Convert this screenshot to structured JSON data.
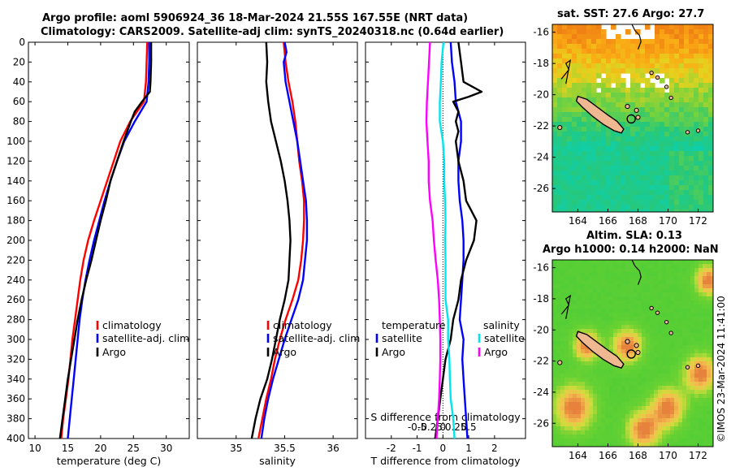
{
  "titles": {
    "line1": "Argo profile: aoml 5906924_36 18-Mar-2024 21.55S 167.55E (NRT data)",
    "line2": "Climatology: CARS2009. Satellite-adj clim: synTS_20240318.nc (0.64d earlier)",
    "sst_map": "sat. SST: 27.6 Argo: 27.7",
    "sla_map_1": "Altim. SLA: 0.13",
    "sla_map_2": "Argo h1000: 0.14 h2000: NaN"
  },
  "credit": "©IMOS 23-Mar-2024 11:41:00",
  "colors": {
    "climatology": "#ff0000",
    "satellite": "#0000ff",
    "argo": "#000000",
    "sal_sat": "#00e5ee",
    "sal_argo": "#ff00ff"
  },
  "chart_data": [
    {
      "type": "line",
      "name": "temperature",
      "xlabel": "temperature (deg C)",
      "xlim": [
        9,
        33.5
      ],
      "xticks": [
        10,
        15,
        20,
        25,
        30
      ],
      "ylim": [
        0,
        400
      ],
      "yticks": [
        0,
        20,
        40,
        60,
        80,
        100,
        120,
        140,
        160,
        180,
        200,
        220,
        240,
        260,
        280,
        300,
        320,
        340,
        360,
        380,
        400
      ],
      "legend": [
        "climatology",
        "satellite-adj. clim",
        "Argo"
      ],
      "series": [
        {
          "name": "climatology",
          "color": "#ff0000",
          "depth": [
            0,
            20,
            40,
            60,
            80,
            100,
            120,
            140,
            160,
            180,
            200,
            220,
            240,
            260,
            280,
            300,
            320,
            340,
            360,
            380,
            400
          ],
          "values": [
            27.1,
            27.0,
            26.9,
            26.6,
            24.5,
            23.0,
            22.0,
            21.0,
            20.0,
            19.0,
            18.1,
            17.4,
            16.9,
            16.5,
            16.1,
            15.7,
            15.4,
            15.1,
            14.7,
            14.3,
            14.0
          ]
        },
        {
          "name": "satellite-adj. clim",
          "color": "#0000ff",
          "depth": [
            0,
            20,
            40,
            60,
            80,
            100,
            120,
            140,
            160,
            180,
            200,
            220,
            240,
            260,
            280,
            300,
            320,
            340,
            360,
            380,
            400
          ],
          "values": [
            27.4,
            27.4,
            27.3,
            27.0,
            25.2,
            23.6,
            22.5,
            21.5,
            20.6,
            19.8,
            19.0,
            18.3,
            17.7,
            17.2,
            16.8,
            16.5,
            16.2,
            15.9,
            15.6,
            15.3,
            15.0
          ]
        },
        {
          "name": "Argo",
          "color": "#000000",
          "depth": [
            0,
            20,
            40,
            50,
            60,
            70,
            80,
            100,
            120,
            140,
            160,
            180,
            200,
            220,
            240,
            260,
            280,
            300,
            320,
            340,
            360,
            380,
            400
          ],
          "values": [
            27.7,
            27.7,
            27.6,
            27.5,
            26.3,
            25.2,
            24.6,
            23.5,
            22.5,
            21.5,
            20.8,
            20.0,
            19.3,
            18.6,
            17.8,
            17.1,
            16.5,
            16.0,
            15.5,
            15.0,
            14.6,
            14.2,
            13.8
          ]
        }
      ]
    },
    {
      "type": "line",
      "name": "salinity",
      "xlabel": "salinity",
      "xlim": [
        34.6,
        36.25
      ],
      "xticks": [
        35,
        35.5,
        36
      ],
      "xtick_labels": [
        "35",
        "35.5",
        "36"
      ],
      "ylim": [
        0,
        400
      ],
      "legend": [
        "climatology",
        "satellite-adj. clim",
        "Argo"
      ],
      "series": [
        {
          "name": "climatology",
          "color": "#ff0000",
          "depth": [
            0,
            20,
            40,
            60,
            80,
            100,
            120,
            140,
            160,
            180,
            200,
            220,
            240,
            260,
            280,
            300,
            320,
            340,
            360,
            380,
            400
          ],
          "values": [
            35.49,
            35.51,
            35.54,
            35.58,
            35.61,
            35.63,
            35.65,
            35.68,
            35.7,
            35.7,
            35.69,
            35.67,
            35.64,
            35.58,
            35.51,
            35.45,
            35.4,
            35.36,
            35.31,
            35.27,
            35.23
          ]
        },
        {
          "name": "satellite-adj. clim",
          "color": "#0000ff",
          "depth": [
            0,
            10,
            20,
            40,
            60,
            80,
            100,
            120,
            140,
            160,
            180,
            200,
            220,
            240,
            260,
            280,
            300,
            320,
            340,
            360,
            380,
            400
          ],
          "values": [
            35.5,
            35.52,
            35.49,
            35.51,
            35.55,
            35.59,
            35.63,
            35.66,
            35.69,
            35.72,
            35.73,
            35.73,
            35.71,
            35.69,
            35.64,
            35.57,
            35.5,
            35.44,
            35.38,
            35.33,
            35.29,
            35.26
          ]
        },
        {
          "name": "Argo",
          "color": "#000000",
          "depth": [
            0,
            20,
            40,
            60,
            80,
            100,
            120,
            140,
            160,
            180,
            200,
            220,
            240,
            260,
            280,
            300,
            320,
            340,
            360,
            380,
            400
          ],
          "values": [
            35.31,
            35.32,
            35.31,
            35.33,
            35.36,
            35.41,
            35.46,
            35.5,
            35.53,
            35.55,
            35.56,
            35.55,
            35.54,
            35.5,
            35.45,
            35.41,
            35.37,
            35.32,
            35.25,
            35.2,
            35.16
          ]
        }
      ]
    },
    {
      "type": "line",
      "name": "difference from climatology",
      "xlabel": "T difference from climatology",
      "xlim": [
        -3,
        3.2
      ],
      "xticks": [
        -2,
        -1,
        0,
        1,
        2
      ],
      "xtick_labels": [
        "-2",
        "-1",
        "0",
        "1",
        "2"
      ],
      "top_axis_label": "S difference from climatology",
      "top_ticks": [
        -1,
        -0.5,
        0,
        0.5,
        1
      ],
      "top_tick_labels": [
        "-0.5",
        "-0.25",
        "0",
        "0.25",
        "0.5"
      ],
      "ylim": [
        0,
        400
      ],
      "legend_temperature": {
        "title": "temperature",
        "items": [
          "satellite",
          "Argo"
        ]
      },
      "legend_salinity": {
        "title": "salinity",
        "items": [
          "satellite",
          "Argo"
        ]
      },
      "series": [
        {
          "name": "temperature satellite",
          "color": "#0000ff",
          "depth": [
            0,
            20,
            40,
            60,
            80,
            100,
            120,
            140,
            160,
            180,
            200,
            220,
            240,
            260,
            280,
            300,
            320,
            340,
            360,
            380,
            400
          ],
          "values": [
            0.3,
            0.35,
            0.45,
            0.5,
            0.7,
            0.7,
            0.6,
            0.6,
            0.65,
            0.75,
            0.8,
            0.8,
            0.75,
            0.7,
            0.65,
            0.8,
            0.75,
            0.8,
            0.85,
            0.9,
            0.95
          ]
        },
        {
          "name": "temperature Argo",
          "color": "#000000",
          "depth": [
            0,
            20,
            40,
            50,
            55,
            60,
            70,
            80,
            90,
            100,
            120,
            140,
            160,
            170,
            180,
            200,
            220,
            240,
            260,
            280,
            300,
            320,
            340,
            360,
            380,
            400
          ],
          "values": [
            0.6,
            0.7,
            0.8,
            1.5,
            1.0,
            0.4,
            0.6,
            0.5,
            0.6,
            0.5,
            0.6,
            0.8,
            0.9,
            1.1,
            1.3,
            1.2,
            0.9,
            0.7,
            0.6,
            0.4,
            0.3,
            0.1,
            0.0,
            -0.1,
            -0.2,
            -0.3
          ]
        },
        {
          "name": "salinity satellite",
          "color": "#00e5ee",
          "depth": [
            0,
            20,
            40,
            60,
            80,
            100,
            120,
            140,
            160,
            180,
            200,
            220,
            240,
            260,
            280,
            300,
            320,
            340,
            360,
            380,
            400
          ],
          "values": [
            0.02,
            -0.05,
            -0.08,
            -0.12,
            -0.12,
            0.0,
            0.05,
            0.05,
            0.08,
            0.1,
            0.08,
            0.1,
            0.1,
            0.1,
            0.2,
            0.2,
            0.25,
            0.27,
            0.3,
            0.4,
            0.45
          ]
        },
        {
          "name": "salinity Argo",
          "color": "#ff00ff",
          "depth": [
            0,
            20,
            40,
            60,
            80,
            100,
            120,
            140,
            160,
            180,
            200,
            220,
            240,
            260,
            280,
            300,
            320,
            340,
            360,
            380,
            400
          ],
          "values": [
            -0.5,
            -0.54,
            -0.58,
            -0.62,
            -0.64,
            -0.6,
            -0.55,
            -0.55,
            -0.5,
            -0.4,
            -0.35,
            -0.28,
            -0.2,
            -0.15,
            -0.12,
            -0.1,
            -0.1,
            -0.12,
            -0.15,
            -0.2,
            -0.25
          ]
        }
      ]
    },
    {
      "type": "heatmap",
      "name": "sst_map",
      "title": "sat. SST: 27.6 Argo: 27.7",
      "xlim": [
        162.3,
        173.0
      ],
      "ylim": [
        -27.5,
        -15.5
      ],
      "xticks": [
        164,
        166,
        168,
        170,
        172
      ],
      "yticks": [
        -16,
        -18,
        -20,
        -22,
        -24,
        -26
      ],
      "argo_marker": {
        "lon": 167.55,
        "lat": -21.55
      }
    },
    {
      "type": "heatmap",
      "name": "sla_map",
      "title": "Altim. SLA: 0.13",
      "subtitle": "Argo h1000: 0.14 h2000: NaN",
      "xlim": [
        162.3,
        173.0
      ],
      "ylim": [
        -27.5,
        -15.5
      ],
      "xticks": [
        164,
        166,
        168,
        170,
        172
      ],
      "yticks": [
        -16,
        -18,
        -20,
        -22,
        -24,
        -26
      ],
      "argo_marker": {
        "lon": 167.55,
        "lat": -21.55
      }
    }
  ]
}
